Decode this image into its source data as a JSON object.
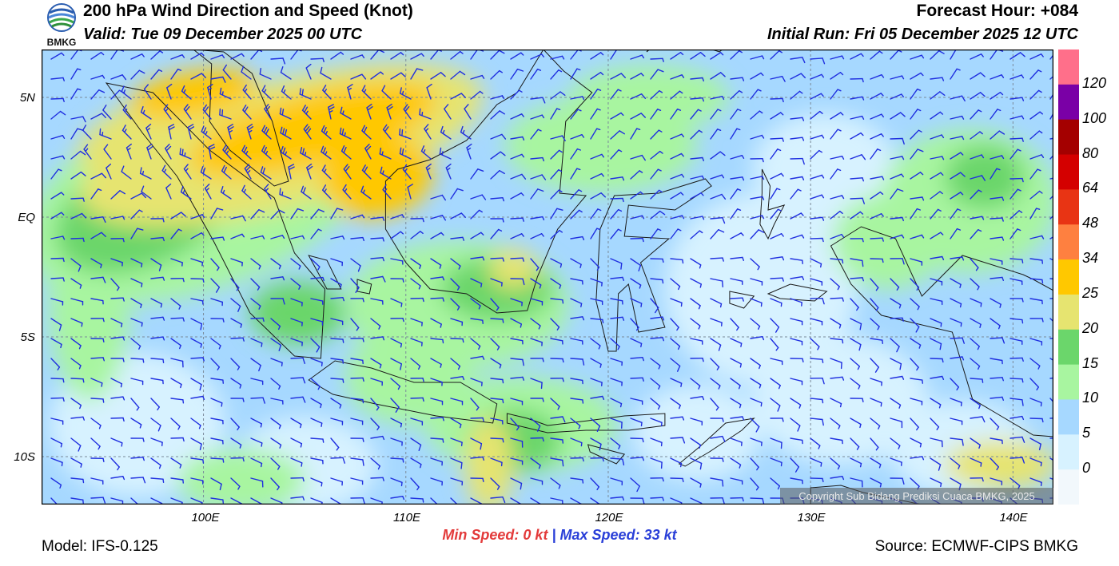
{
  "header": {
    "title": "200 hPa Wind Direction and Speed (Knot)",
    "valid": "Valid: Tue 09 December 2025 00 UTC",
    "forecast_hour": "Forecast Hour: +084",
    "initial_run": "Initial Run: Fri 05 December 2025 12 UTC",
    "logo_text": "BMKG"
  },
  "map": {
    "lat_labels": [
      "5N",
      "EQ",
      "5S",
      "10S"
    ],
    "lat_values": [
      5,
      0,
      -5,
      -10
    ],
    "lon_labels": [
      "100E",
      "110E",
      "120E",
      "130E",
      "140E"
    ],
    "lon_values": [
      100,
      110,
      120,
      130,
      140
    ],
    "lon_range": [
      92,
      142
    ],
    "lat_range": [
      -12,
      7
    ],
    "copyright": "Copyright Sub Bidang Prediksi Cuaca BMKG, 2025"
  },
  "legend": {
    "labels": [
      "120",
      "100",
      "80",
      "64",
      "48",
      "34",
      "25",
      "20",
      "15",
      "10",
      "5",
      "0"
    ],
    "colors": [
      "#ff6f8a",
      "#7a00a6",
      "#a40000",
      "#d40000",
      "#e83414",
      "#fe8040",
      "#ffc800",
      "#e6e470",
      "#6bd66b",
      "#a8f5a0",
      "#a6d8ff",
      "#d7f2ff",
      "#f2f8fc"
    ]
  },
  "stats": {
    "min_label": "Min Speed:",
    "min_value": "0 kt",
    "separator": "|",
    "max_label": "Max Speed:",
    "max_value": "33 kt"
  },
  "footer": {
    "model": "Model: IFS-0.125",
    "source": "Source: ECMWF-CIPS BMKG"
  }
}
